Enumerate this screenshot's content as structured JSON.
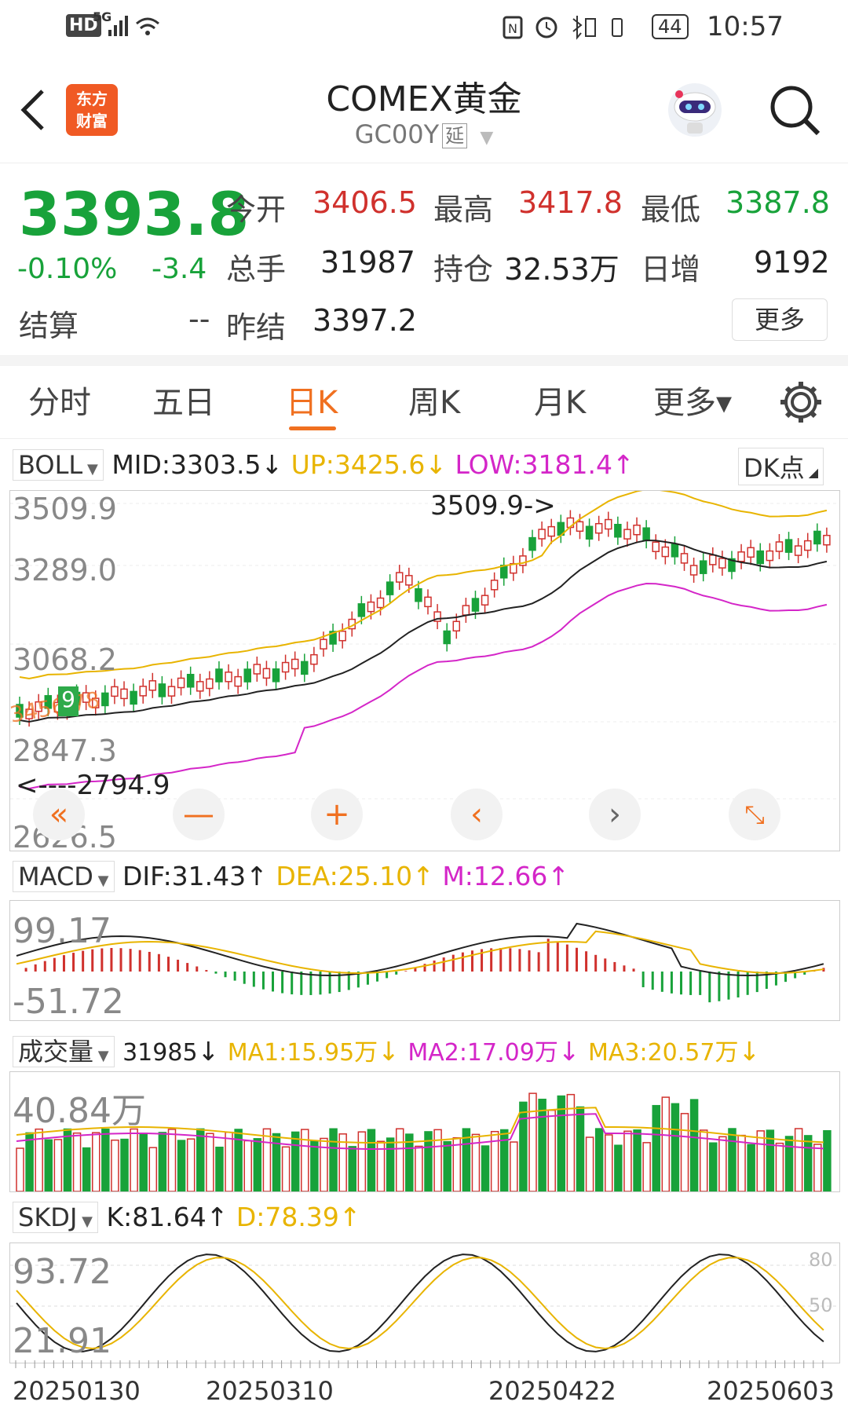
{
  "status_bar": {
    "hd": "HD",
    "net": "5G",
    "battery": "44",
    "time": "10:57"
  },
  "header": {
    "logo_line1": "东方",
    "logo_line2": "财富",
    "title": "COMEX黄金",
    "code": "GC00Y",
    "delay_badge": "延"
  },
  "quote": {
    "price": "3393.8",
    "change_pct": "-0.10%",
    "change": "-3.4",
    "settle_label": "结算",
    "settle_value": "--",
    "open_label": "今开",
    "open_value": "3406.5",
    "high_label": "最高",
    "high_value": "3417.8",
    "low_label": "最低",
    "low_value": "3387.8",
    "volume_label": "总手",
    "volume_value": "31987",
    "oi_label": "持仓",
    "oi_value": "32.53万",
    "daily_inc_label": "日增",
    "daily_inc_value": "9192",
    "prev_settle_label": "昨结",
    "prev_settle_value": "3397.2",
    "more_label": "更多"
  },
  "tabs": [
    "分时",
    "五日",
    "日K",
    "周K",
    "月K",
    "更多▾"
  ],
  "active_tab": "日K",
  "boll": {
    "name": "BOLL",
    "mid": "MID:3303.5",
    "up": "UP:3425.6",
    "low": "LOW:3181.4",
    "dk": "DK点",
    "axis": [
      "3509.9",
      "3289.0",
      "3068.2",
      "2847.3",
      "2626.5"
    ],
    "max_marker": "3509.9->",
    "min_marker": "<----2794.9",
    "badge": "9",
    "overlay_digits": "3456 78"
  },
  "macd": {
    "name": "MACD",
    "dif": "DIF:31.43",
    "dea": "DEA:25.10",
    "m": "M:12.66",
    "axis_top": "99.17",
    "axis_bottom": "-51.72"
  },
  "volume": {
    "name": "成交量",
    "value": "31985",
    "ma1": "MA1:15.95万",
    "ma2": "MA2:17.09万",
    "ma3": "MA3:20.57万",
    "axis_top": "40.84万"
  },
  "skdj": {
    "name": "SKDJ",
    "k": "K:81.64",
    "d": "D:78.39",
    "axis_top": "93.72",
    "axis_bottom": "21.91",
    "ref80": "80",
    "ref50": "50"
  },
  "dates": [
    "20250130",
    "20250310",
    "20250422",
    "20250603"
  ],
  "colors": {
    "up": "#d0312d",
    "down": "#18a23a",
    "accent": "#f07020",
    "boll_up": "#e8b400",
    "boll_low": "#d426c8"
  }
}
